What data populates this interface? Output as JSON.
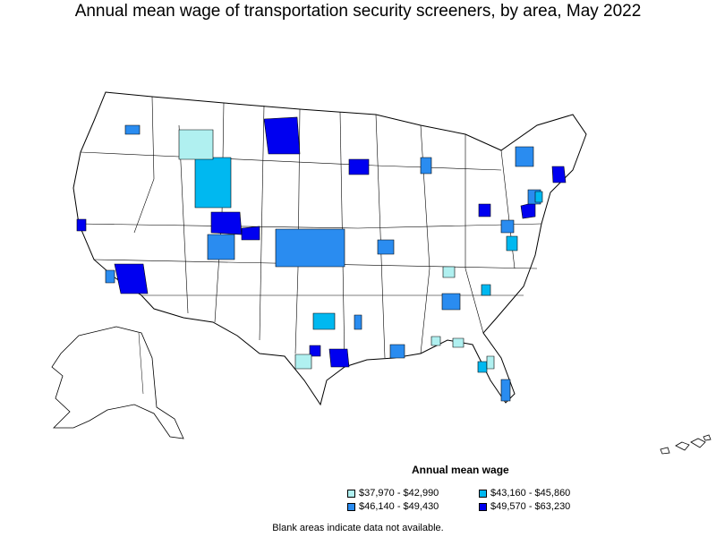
{
  "title": "Annual mean wage of transportation security screeners, by area, May 2022",
  "legend": {
    "title": "Annual mean wage",
    "items": [
      {
        "label": "$37,970 - $42,990",
        "color": "#b0f0f0"
      },
      {
        "label": "$43,160 - $45,860",
        "color": "#00b8f0"
      },
      {
        "label": "$46,140 - $49,430",
        "color": "#2a8cf0"
      },
      {
        "label": "$49,570 - $63,230",
        "color": "#0000f0"
      }
    ]
  },
  "footnote": "Blank areas indicate data not available.",
  "colors": {
    "level1": "#b0f0f0",
    "level2": "#00b8f0",
    "level3": "#2a8cf0",
    "level4": "#0000f0",
    "background": "#ffffff",
    "border": "#000000"
  }
}
